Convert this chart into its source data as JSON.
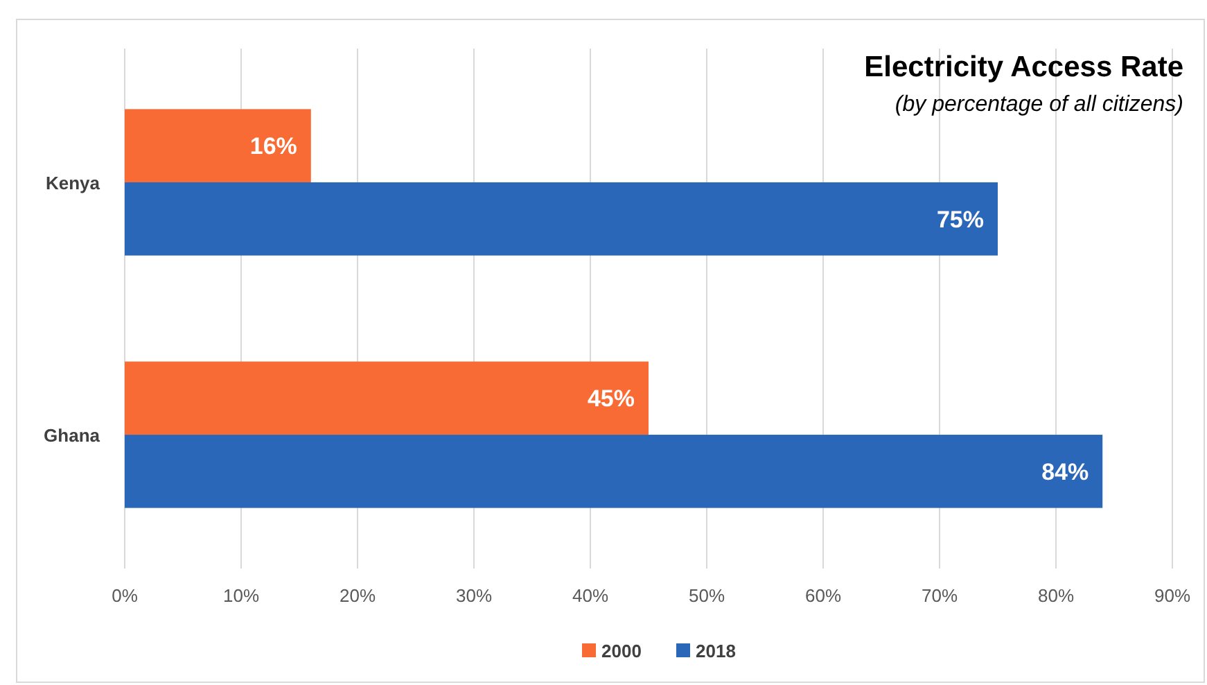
{
  "chart_data": {
    "type": "bar",
    "orientation": "horizontal",
    "title": "Electricity Access Rate",
    "subtitle": "(by percentage of all citizens)",
    "categories": [
      "Kenya",
      "Ghana"
    ],
    "series": [
      {
        "name": "2000",
        "color": "#f96b35",
        "values": [
          16,
          45
        ]
      },
      {
        "name": "2018",
        "color": "#2b67b9",
        "values": [
          75,
          84
        ]
      }
    ],
    "xlim": [
      0,
      90
    ],
    "xticks": [
      {
        "value": 0,
        "label": "0%"
      },
      {
        "value": 10,
        "label": "10%"
      },
      {
        "value": 20,
        "label": "20%"
      },
      {
        "value": 30,
        "label": "30%"
      },
      {
        "value": 40,
        "label": "40%"
      },
      {
        "value": 50,
        "label": "50%"
      },
      {
        "value": 60,
        "label": "60%"
      },
      {
        "value": 70,
        "label": "70%"
      },
      {
        "value": 80,
        "label": "80%"
      },
      {
        "value": 90,
        "label": "90%"
      }
    ],
    "value_labels": [
      [
        "16%",
        "45%"
      ],
      [
        "75%",
        "84%"
      ]
    ],
    "grid": "x",
    "legend": "bottom"
  }
}
